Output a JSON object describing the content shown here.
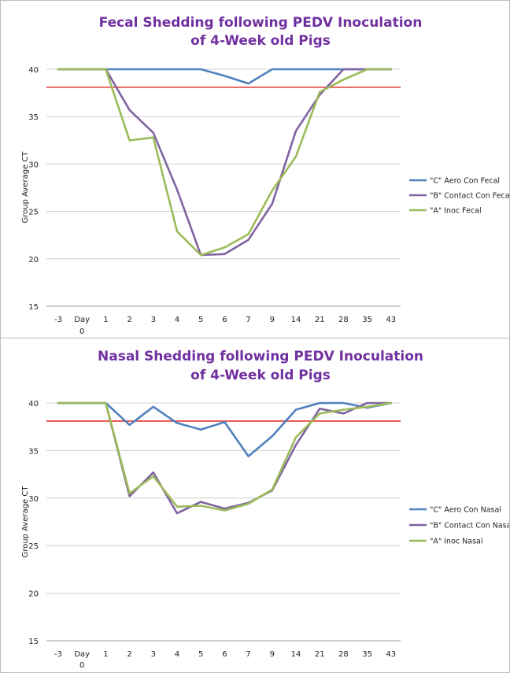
{
  "chart_data": [
    {
      "type": "line",
      "title": "Fecal Shedding following PEDV Inoculation",
      "subtitle": "of 4-Week old Pigs",
      "xlabel": "",
      "ylabel": "Group Average CT",
      "ylim": [
        15,
        40
      ],
      "yticks": [
        15,
        20,
        25,
        30,
        35,
        40
      ],
      "categories": [
        "-3",
        "Day 0",
        "1",
        "2",
        "3",
        "4",
        "5",
        "6",
        "7",
        "9",
        "14",
        "21",
        "28",
        "35",
        "43"
      ],
      "threshold": 38.1,
      "threshold_color": "#e3342f",
      "grid": true,
      "legend_position": "right",
      "series": [
        {
          "name": "\"C\" Aero Con Fecal",
          "color": "#4f81bd",
          "values": [
            40,
            40,
            40,
            40,
            40,
            40,
            40,
            39.3,
            38.5,
            40,
            40,
            40,
            40,
            40,
            40
          ]
        },
        {
          "name": "\"B\" Contact Con Fecal",
          "color": "#8064a2",
          "values": [
            40,
            40,
            40,
            35.7,
            33.3,
            27.3,
            20.4,
            20.5,
            22.0,
            25.8,
            33.5,
            37.3,
            40,
            40,
            40
          ]
        },
        {
          "name": "\"A\" Inoc Fecal",
          "color": "#9bbb59",
          "values": [
            40,
            40,
            40,
            32.5,
            32.8,
            22.9,
            20.4,
            21.2,
            22.6,
            27.2,
            30.8,
            37.6,
            38.9,
            40,
            40
          ]
        }
      ]
    },
    {
      "type": "line",
      "title": "Nasal Shedding following PEDV Inoculation",
      "subtitle": "of 4-Week old Pigs",
      "xlabel": "",
      "ylabel": "Group Average CT",
      "ylim": [
        15,
        40
      ],
      "yticks": [
        15,
        20,
        25,
        30,
        35,
        40
      ],
      "categories": [
        "-3",
        "Day 0",
        "1",
        "2",
        "3",
        "4",
        "5",
        "6",
        "7",
        "9",
        "14",
        "21",
        "28",
        "35",
        "43"
      ],
      "threshold": 38.1,
      "threshold_color": "#e3342f",
      "grid": true,
      "legend_position": "right",
      "series": [
        {
          "name": "\"C\" Aero Con Nasal",
          "color": "#4f81bd",
          "values": [
            40,
            40,
            40,
            37.7,
            39.6,
            37.9,
            37.2,
            38.0,
            34.4,
            36.5,
            39.3,
            40,
            40,
            39.5,
            40
          ]
        },
        {
          "name": "\"B\" Contact Con Nasal",
          "color": "#8064a2",
          "values": [
            40,
            40,
            40,
            30.2,
            32.7,
            28.4,
            29.6,
            28.9,
            29.5,
            30.8,
            35.6,
            39.4,
            38.9,
            40,
            40
          ]
        },
        {
          "name": "\"A\" Inoc Nasal",
          "color": "#9bbb59",
          "values": [
            40,
            40,
            40,
            30.5,
            32.3,
            29.1,
            29.2,
            28.7,
            29.4,
            30.9,
            36.4,
            38.9,
            39.3,
            39.6,
            40
          ]
        }
      ]
    }
  ]
}
